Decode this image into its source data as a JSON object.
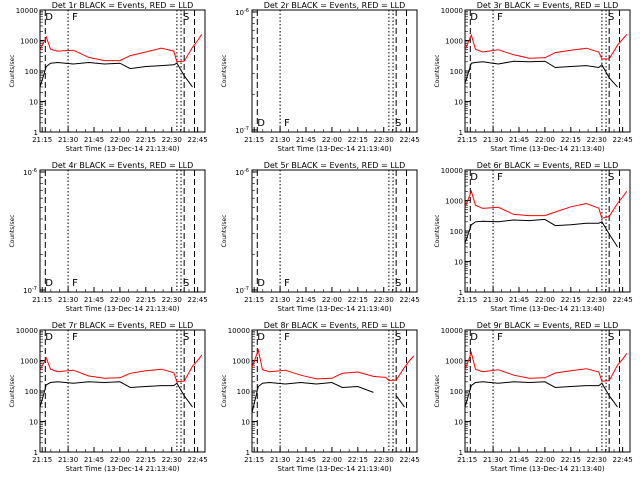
{
  "chart_data": {
    "type": "line",
    "x_ticks": [
      "21:15",
      "21:30",
      "21:45",
      "22:00",
      "22:15",
      "22:30",
      "22:45"
    ],
    "xlabel": "Start Time (13-Dec-14 21:13:40)",
    "ylabel": "Counts/sec",
    "y_scale": "log",
    "series_legend": {
      "black": "Events",
      "red": "LLD"
    },
    "colors": {
      "events": "#000000",
      "lld": "#ff0000"
    },
    "markers": [
      {
        "label": "D",
        "x": 21.26
      },
      {
        "label": "F",
        "x": 21.52
      },
      {
        "label": "S",
        "x": 22.59
      }
    ],
    "panels": [
      {
        "title": "Det 1r BLACK = Events, RED = LLD",
        "has_data": true,
        "y_ticks": [
          "10000",
          "1000",
          "100",
          "10",
          "1"
        ],
        "x": [
          21.23,
          21.29,
          21.33,
          21.4,
          21.55,
          21.7,
          21.85,
          22.0,
          22.1,
          22.25,
          22.4,
          22.52,
          22.55,
          22.62,
          22.7,
          22.75,
          22.79
        ],
        "lld": [
          500,
          1300,
          520,
          450,
          480,
          280,
          220,
          220,
          320,
          420,
          560,
          450,
          200,
          210,
          600,
          1000,
          1600
        ],
        "events": [
          30,
          140,
          180,
          190,
          170,
          190,
          170,
          180,
          120,
          140,
          150,
          160,
          180,
          70,
          30,
          null,
          null
        ]
      },
      {
        "title": "Det 2r BLACK = Events, RED = LLD",
        "has_data": false,
        "y_ticks": [
          "10-6",
          "10-7"
        ]
      },
      {
        "title": "Det 3r BLACK = Events, RED = LLD",
        "has_data": true,
        "y_ticks": [
          "10000",
          "1000",
          "100",
          "10",
          "1"
        ],
        "x": [
          21.23,
          21.29,
          21.33,
          21.4,
          21.55,
          21.7,
          21.85,
          22.0,
          22.1,
          22.25,
          22.4,
          22.52,
          22.55,
          22.62,
          22.7,
          22.75,
          22.79
        ],
        "lld": [
          500,
          1500,
          520,
          420,
          500,
          340,
          260,
          270,
          400,
          480,
          560,
          420,
          250,
          250,
          700,
          1100,
          1600
        ],
        "events": [
          40,
          180,
          190,
          200,
          170,
          210,
          200,
          210,
          130,
          140,
          150,
          130,
          160,
          60,
          30,
          null,
          null
        ]
      },
      {
        "title": "Det 4r BLACK = Events, RED = LLD",
        "has_data": false,
        "y_ticks": [
          "10-6",
          "10-7"
        ]
      },
      {
        "title": "Det 5r BLACK = Events, RED = LLD",
        "has_data": false,
        "y_ticks": [
          "10-6",
          "10-7"
        ]
      },
      {
        "title": "Det 6r BLACK = Events, RED = LLD",
        "has_data": true,
        "y_ticks": [
          "10000",
          "1000",
          "100",
          "10",
          "1"
        ],
        "x": [
          21.23,
          21.29,
          21.33,
          21.4,
          21.55,
          21.7,
          21.85,
          22.0,
          22.1,
          22.25,
          22.4,
          22.52,
          22.55,
          22.62,
          22.7,
          22.75,
          22.79
        ],
        "lld": [
          600,
          2000,
          700,
          550,
          600,
          350,
          320,
          320,
          420,
          620,
          800,
          560,
          260,
          300,
          800,
          1300,
          2000
        ],
        "events": [
          40,
          160,
          200,
          210,
          200,
          230,
          220,
          240,
          150,
          160,
          180,
          180,
          200,
          80,
          30,
          null,
          null
        ]
      },
      {
        "title": "Det 7r BLACK = Events, RED = LLD",
        "has_data": true,
        "y_ticks": [
          "10000",
          "1000",
          "100",
          "10",
          "1"
        ],
        "x": [
          21.23,
          21.29,
          21.33,
          21.4,
          21.55,
          21.7,
          21.85,
          22.0,
          22.1,
          22.25,
          22.4,
          22.52,
          22.55,
          22.62,
          22.7,
          22.75,
          22.79
        ],
        "lld": [
          500,
          1200,
          520,
          430,
          480,
          310,
          260,
          270,
          380,
          460,
          520,
          400,
          200,
          210,
          650,
          1000,
          1500
        ],
        "events": [
          30,
          160,
          190,
          200,
          180,
          200,
          190,
          200,
          130,
          140,
          150,
          150,
          180,
          70,
          30,
          null,
          null
        ]
      },
      {
        "title": "Det 8r BLACK = Events, RED = LLD",
        "has_data": true,
        "y_ticks": [
          "10000",
          "1000",
          "100",
          "10",
          "1"
        ],
        "x": [
          21.23,
          21.29,
          21.33,
          21.4,
          21.55,
          21.7,
          21.85,
          22.0,
          22.1,
          22.25,
          22.4,
          22.52,
          22.55,
          22.62,
          22.7,
          22.75,
          22.79
        ],
        "lld": [
          600,
          2200,
          500,
          430,
          480,
          330,
          250,
          260,
          380,
          420,
          300,
          280,
          220,
          230,
          600,
          1000,
          1400
        ],
        "events": [
          20,
          140,
          180,
          190,
          170,
          190,
          170,
          190,
          130,
          140,
          90,
          null,
          null,
          70,
          30,
          null,
          null
        ]
      },
      {
        "title": "Det 9r BLACK = Events, RED = LLD",
        "has_data": true,
        "y_ticks": [
          "10000",
          "1000",
          "100",
          "10",
          "1"
        ],
        "x": [
          21.23,
          21.29,
          21.33,
          21.4,
          21.55,
          21.7,
          21.85,
          22.0,
          22.1,
          22.25,
          22.4,
          22.52,
          22.55,
          22.62,
          22.7,
          22.75,
          22.79
        ],
        "lld": [
          500,
          1800,
          520,
          430,
          500,
          330,
          260,
          270,
          390,
          460,
          540,
          420,
          210,
          220,
          700,
          1100,
          1700
        ],
        "events": [
          30,
          150,
          190,
          200,
          180,
          200,
          190,
          200,
          130,
          140,
          150,
          150,
          180,
          70,
          30,
          null,
          null
        ]
      }
    ]
  }
}
